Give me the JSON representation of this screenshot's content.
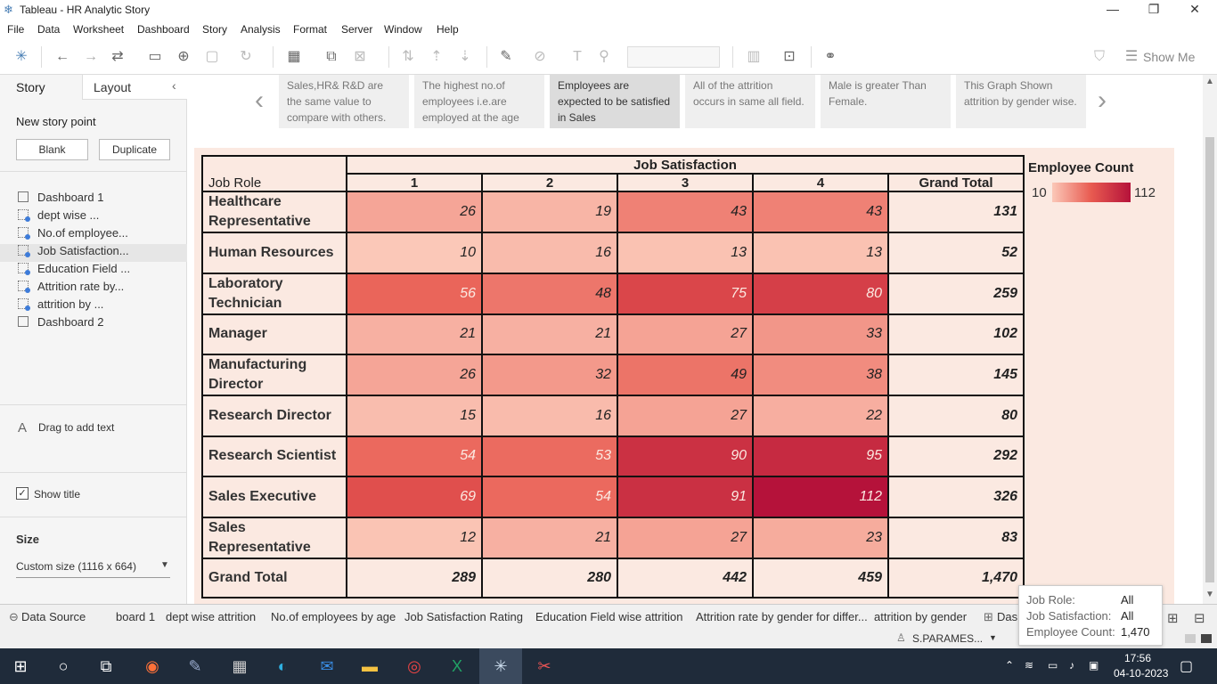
{
  "window": {
    "title": "Tableau - HR Analytic Story"
  },
  "menu": [
    "File",
    "Data",
    "Worksheet",
    "Dashboard",
    "Story",
    "Analysis",
    "Format",
    "Server",
    "Window",
    "Help"
  ],
  "toolbar": {
    "show_me": "Show Me"
  },
  "leftpane": {
    "tab_story": "Story",
    "tab_layout": "Layout",
    "new_story_point": "New story point",
    "blank": "Blank",
    "duplicate": "Duplicate",
    "sheets": [
      {
        "label": "Dashboard 1",
        "icon": "dashboard-icon"
      },
      {
        "label": "dept wise ...",
        "icon": "worksheet-icon"
      },
      {
        "label": "No.of employee...",
        "icon": "worksheet-icon"
      },
      {
        "label": "Job Satisfaction...",
        "icon": "worksheet-icon"
      },
      {
        "label": "Education Field ...",
        "icon": "worksheet-icon"
      },
      {
        "label": "Attrition rate by...",
        "icon": "worksheet-icon"
      },
      {
        "label": "attrition by ...",
        "icon": "worksheet-icon"
      },
      {
        "label": "Dashboard 2",
        "icon": "dashboard-icon"
      }
    ],
    "drag_text": "Drag to add text",
    "show_title": "Show title",
    "size_label": "Size",
    "size_value": "Custom size (1116 x 664)"
  },
  "story_points": [
    "Sales,HR& R&D are the same value to compare with others.",
    "The highest no.of employees i.e.are employed at the age",
    "Employees are expected to be satisfied in Sales",
    "All of the attrition occurs in same all field.",
    "Male is greater Than Female.",
    "This Graph Shown attrition by gender wise."
  ],
  "table": {
    "col_group": "Job Satisfaction",
    "row_header": "Job Role",
    "columns": [
      "1",
      "2",
      "3",
      "4",
      "Grand Total"
    ],
    "rows": [
      {
        "role": "Healthcare Representative",
        "values": [
          "26",
          "19",
          "43",
          "43"
        ],
        "total": "131"
      },
      {
        "role": "Human Resources",
        "values": [
          "10",
          "16",
          "13",
          "13"
        ],
        "total": "52"
      },
      {
        "role": "Laboratory Technician",
        "values": [
          "56",
          "48",
          "75",
          "80"
        ],
        "total": "259"
      },
      {
        "role": "Manager",
        "values": [
          "21",
          "21",
          "27",
          "33"
        ],
        "total": "102"
      },
      {
        "role": "Manufacturing Director",
        "values": [
          "26",
          "32",
          "49",
          "38"
        ],
        "total": "145"
      },
      {
        "role": "Research Director",
        "values": [
          "15",
          "16",
          "27",
          "22"
        ],
        "total": "80"
      },
      {
        "role": "Research Scientist",
        "values": [
          "54",
          "53",
          "90",
          "95"
        ],
        "total": "292"
      },
      {
        "role": "Sales Executive",
        "values": [
          "69",
          "54",
          "91",
          "112"
        ],
        "total": "326"
      },
      {
        "role": "Sales Representative",
        "values": [
          "12",
          "21",
          "27",
          "23"
        ],
        "total": "83"
      }
    ],
    "grand_total": {
      "label": "Grand Total",
      "values": [
        "289",
        "280",
        "442",
        "459"
      ],
      "total": "1,470"
    }
  },
  "legend": {
    "title": "Employee Count",
    "min": "10",
    "max": "112"
  },
  "sheet_tabs": [
    "Data Source",
    "board 1",
    "dept wise attrition",
    "No.of employees by age",
    "Job Satisfaction Rating",
    "Education Field wise attrition",
    "Attrition rate by gender for differ...",
    "attrition by gender",
    "Dasl"
  ],
  "status": {
    "user": "S.PARAMES..."
  },
  "tooltip": {
    "k1": "Job Role:",
    "v1": "All",
    "k2": "Job Satisfaction:",
    "v2": "All",
    "k3": "Employee Count:",
    "v3": "1,470"
  },
  "taskbar": {
    "time": "17:56",
    "date": "04-10-2023"
  },
  "colors": {
    "low": "#fbc8b8",
    "mid": "#e85a50",
    "high": "#b5123a",
    "panel_bg": "#fbe9e1"
  }
}
